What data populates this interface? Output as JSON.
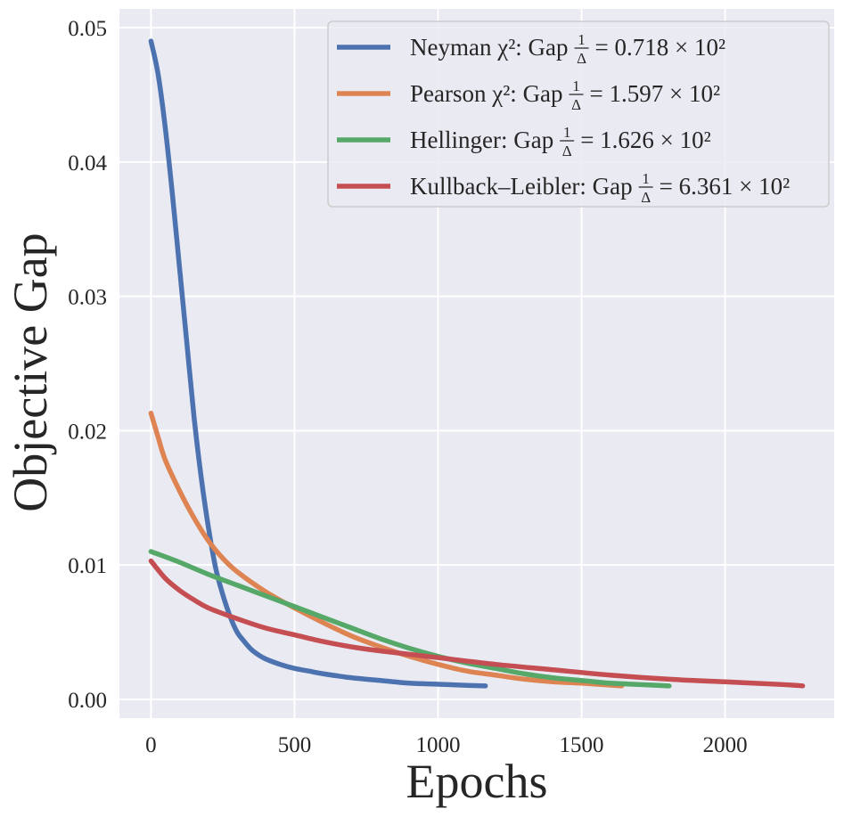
{
  "chart_data": {
    "type": "line",
    "xlabel": "Epochs",
    "ylabel": "Objective Gap",
    "xlim": [
      -110,
      2380
    ],
    "ylim": [
      -0.0014,
      0.0514
    ],
    "xticks": [
      0,
      500,
      1000,
      1500,
      2000
    ],
    "xtick_labels": [
      "0",
      "500",
      "1000",
      "1500",
      "2000"
    ],
    "yticks": [
      0.0,
      0.01,
      0.02,
      0.03,
      0.04,
      0.05
    ],
    "ytick_labels": [
      "0.00",
      "0.01",
      "0.02",
      "0.03",
      "0.04",
      "0.05"
    ],
    "grid": true,
    "legend_position": "top-right",
    "series": [
      {
        "name": "Neyman",
        "legend_label": "Neyman χ²: Gap 1/Δ = 0.718 × 10²",
        "legend_prefix": "Neyman χ²: Gap",
        "legend_value": "= 0.718 × 10²",
        "color": "#4c72b0",
        "x": [
          0,
          25,
          50,
          75,
          100,
          125,
          150,
          175,
          200,
          225,
          250,
          275,
          300,
          325,
          350,
          375,
          400,
          450,
          500,
          550,
          600,
          700,
          800,
          900,
          1000,
          1100,
          1165
        ],
        "y": [
          0.049,
          0.0465,
          0.0425,
          0.0375,
          0.032,
          0.0265,
          0.021,
          0.0165,
          0.0128,
          0.0098,
          0.0078,
          0.0062,
          0.005,
          0.0043,
          0.0037,
          0.0033,
          0.003,
          0.0026,
          0.0023,
          0.0021,
          0.0019,
          0.0016,
          0.0014,
          0.0012,
          0.00112,
          0.00104,
          0.001
        ]
      },
      {
        "name": "Pearson",
        "legend_label": "Pearson χ²: Gap 1/Δ = 1.597 × 10²",
        "legend_prefix": "Pearson χ²: Gap",
        "legend_value": "= 1.597 × 10²",
        "color": "#dd8452",
        "x": [
          0,
          25,
          50,
          100,
          150,
          200,
          250,
          300,
          400,
          500,
          600,
          700,
          800,
          900,
          1000,
          1100,
          1200,
          1300,
          1400,
          1500,
          1640
        ],
        "y": [
          0.0213,
          0.0195,
          0.0178,
          0.0155,
          0.0135,
          0.0118,
          0.0105,
          0.0095,
          0.008,
          0.0068,
          0.0057,
          0.0047,
          0.0039,
          0.0032,
          0.0026,
          0.0021,
          0.0018,
          0.0015,
          0.0013,
          0.0012,
          0.001
        ]
      },
      {
        "name": "Hellinger",
        "legend_label": "Hellinger: Gap 1/Δ = 1.626 × 10²",
        "legend_prefix": "Hellinger: Gap",
        "legend_value": "= 1.626 × 10²",
        "color": "#55a868",
        "x": [
          0,
          100,
          200,
          300,
          400,
          500,
          600,
          700,
          800,
          900,
          1000,
          1100,
          1200,
          1300,
          1400,
          1500,
          1600,
          1700,
          1805
        ],
        "y": [
          0.011,
          0.0102,
          0.0093,
          0.0085,
          0.0077,
          0.0069,
          0.0061,
          0.0053,
          0.0045,
          0.0038,
          0.0032,
          0.0027,
          0.0023,
          0.0019,
          0.0016,
          0.0014,
          0.0012,
          0.0011,
          0.001
        ]
      },
      {
        "name": "Kullback-Leibler",
        "legend_label": "Kullback–Leibler: Gap 1/Δ = 6.361 × 10²",
        "legend_prefix": "Kullback–Leibler: Gap",
        "legend_value": "= 6.361 × 10²",
        "color": "#c44e52",
        "x": [
          0,
          50,
          100,
          150,
          200,
          300,
          400,
          500,
          600,
          700,
          800,
          1000,
          1200,
          1400,
          1600,
          1800,
          2000,
          2200,
          2270
        ],
        "y": [
          0.0103,
          0.009,
          0.0081,
          0.0074,
          0.0068,
          0.006,
          0.0053,
          0.0048,
          0.0043,
          0.0039,
          0.0036,
          0.0031,
          0.0026,
          0.0022,
          0.0018,
          0.0015,
          0.0013,
          0.0011,
          0.001
        ]
      }
    ]
  },
  "legend_fraction": {
    "num": "1",
    "den": "Δ"
  }
}
